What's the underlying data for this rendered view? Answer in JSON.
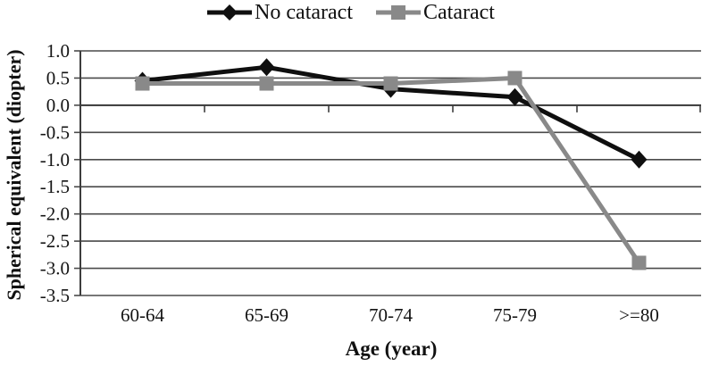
{
  "figure": {
    "background": "#ffffff"
  },
  "legend": {
    "position": "top-center",
    "items": [
      {
        "label": "No cataract",
        "color": "#0f0f0f",
        "marker": "diamond"
      },
      {
        "label": "Cataract",
        "color": "#898989",
        "marker": "square"
      }
    ]
  },
  "chart_data": {
    "type": "line",
    "title": "",
    "xlabel": "Age (year)",
    "ylabel": "Spherical equivalent (diopter)",
    "categories": [
      "60-64",
      "65-69",
      "70-74",
      "75-79",
      ">=80"
    ],
    "series": [
      {
        "name": "No cataract",
        "marker": "diamond",
        "color": "#0f0f0f",
        "values": [
          0.45,
          0.7,
          0.3,
          0.15,
          -1.0
        ]
      },
      {
        "name": "Cataract",
        "marker": "square",
        "color": "#898989",
        "values": [
          0.4,
          0.4,
          0.4,
          0.5,
          -2.9
        ]
      }
    ],
    "ylim": [
      -3.5,
      1.0
    ],
    "ytick_step": 0.5,
    "yticks": [
      1.0,
      0.5,
      0.0,
      -0.5,
      -1.0,
      -1.5,
      -2.0,
      -2.5,
      -3.0,
      -3.5
    ],
    "ytick_labels": [
      "1.0",
      "0.5",
      "0.0",
      "-0.5",
      "-1.0",
      "-1.5",
      "-2.0",
      "-2.5",
      "-3.0",
      "-3.5"
    ],
    "grid": true,
    "x_axis_cross": 0.0,
    "legend_position": "top"
  },
  "style": {
    "grid_color": "#4a4a4a",
    "axis_color": "#3d3d3d",
    "text_color": "#141414",
    "series_line_width": 5
  }
}
